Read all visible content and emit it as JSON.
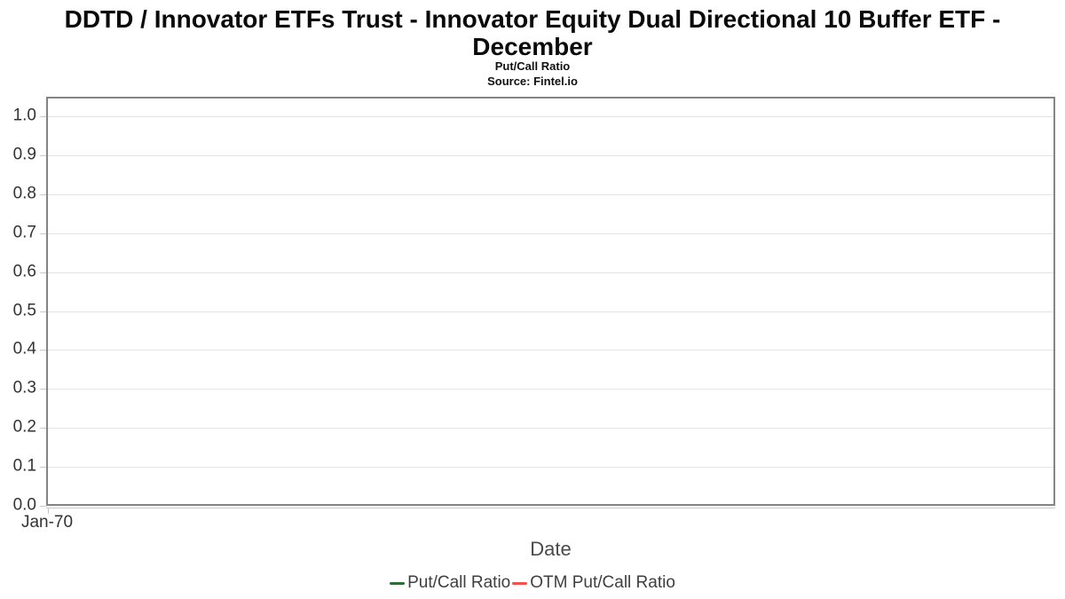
{
  "chart_data": {
    "type": "line",
    "title": "DDTD / Innovator ETFs Trust - Innovator Equity Dual Directional 10 Buffer ETF - December",
    "subtitle": "Put/Call Ratio",
    "source": "Source: Fintel.io",
    "xlabel": "Date",
    "ylabel": "",
    "x_tick_labels": [
      "Jan-70"
    ],
    "y_ticks": [
      1.0,
      0.9,
      0.8,
      0.7,
      0.6,
      0.5,
      0.4,
      0.3,
      0.2,
      0.1,
      0.0
    ],
    "y_tick_labels": [
      "1.0",
      "0.9",
      "0.8",
      "0.7",
      "0.6",
      "0.5",
      "0.4",
      "0.3",
      "0.2",
      "0.1",
      "0.0"
    ],
    "ylim": [
      0.0,
      1.05
    ],
    "grid": "horizontal",
    "legend_position": "bottom",
    "series": [
      {
        "name": "Put/Call Ratio",
        "color": "#2e6c38",
        "x": [],
        "values": []
      },
      {
        "name": "OTM Put/Call Ratio",
        "color": "#f1524e",
        "x": [],
        "values": []
      }
    ]
  },
  "colors": {
    "plot_border": "#848484",
    "gridline": "#e4e4e4",
    "axis_line": "#cccccc",
    "tick_label": "#333333",
    "axis_title": "#4a4a4a",
    "legend_text": "#3f3f3f"
  }
}
